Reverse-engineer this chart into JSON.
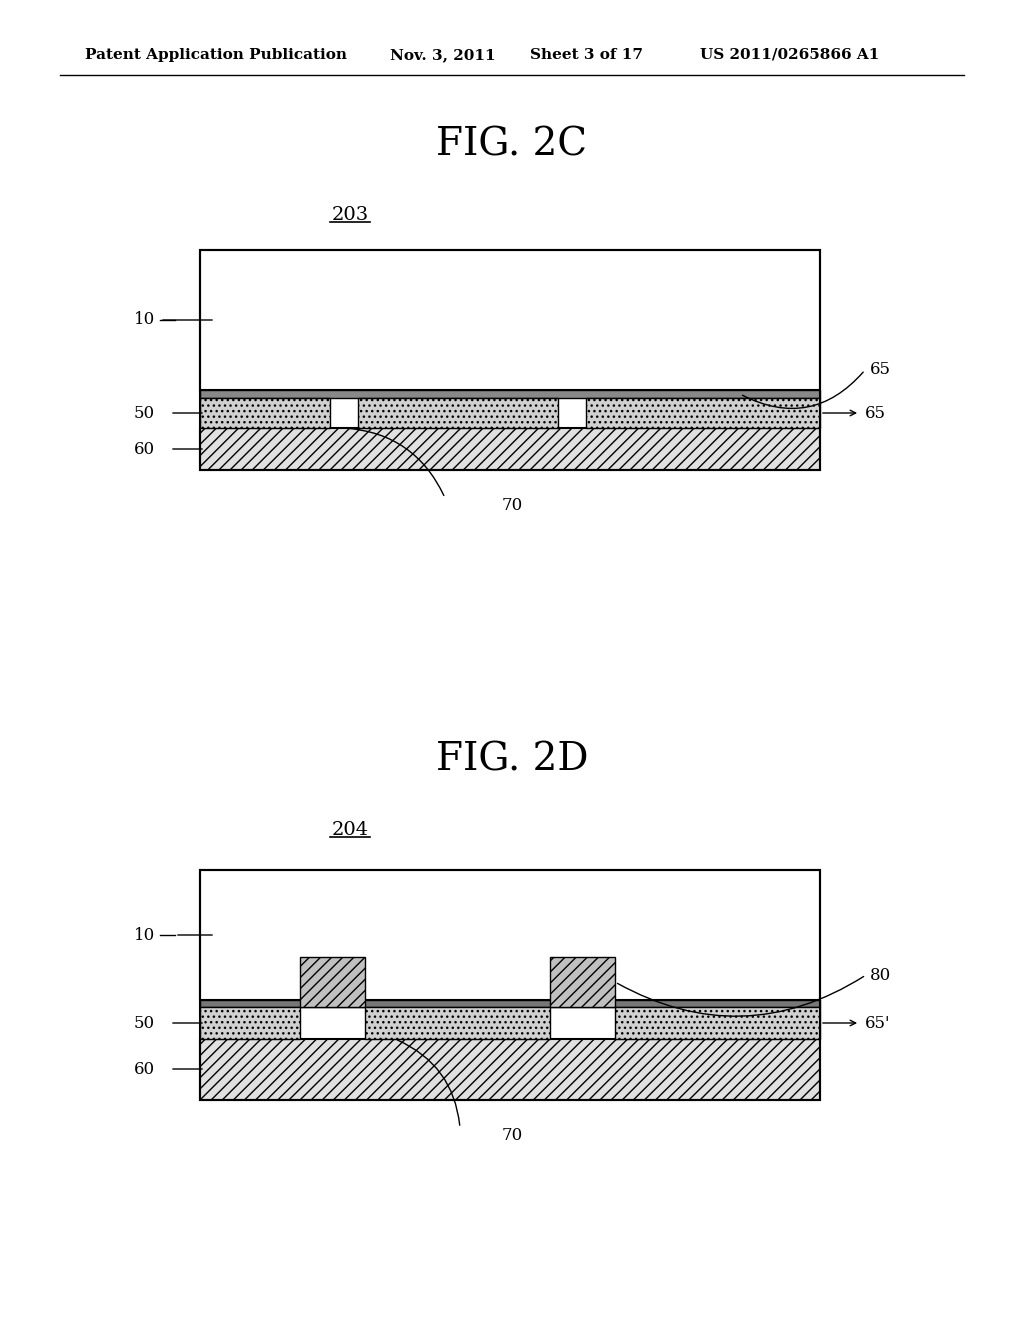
{
  "bg_color": "#ffffff",
  "header_text": "Patent Application Publication",
  "header_date": "Nov. 3, 2011",
  "header_sheet": "Sheet 3 of 17",
  "header_patent": "US 2011/0265866 A1",
  "fig2c_title": "FIG. 2C",
  "fig2c_label": "203",
  "fig2d_title": "FIG. 2D",
  "fig2d_label": "204",
  "diagram_bg": "#ffffff",
  "layer10_color": "#ffffff",
  "layer50_dotted_color": "#d0d0d0",
  "layer60_hatch_color": "#c8c8c8",
  "layer65_thin_color": "#888888",
  "layer80_hatch_color": "#a0a0a0",
  "line_color": "#000000",
  "text_color": "#000000"
}
